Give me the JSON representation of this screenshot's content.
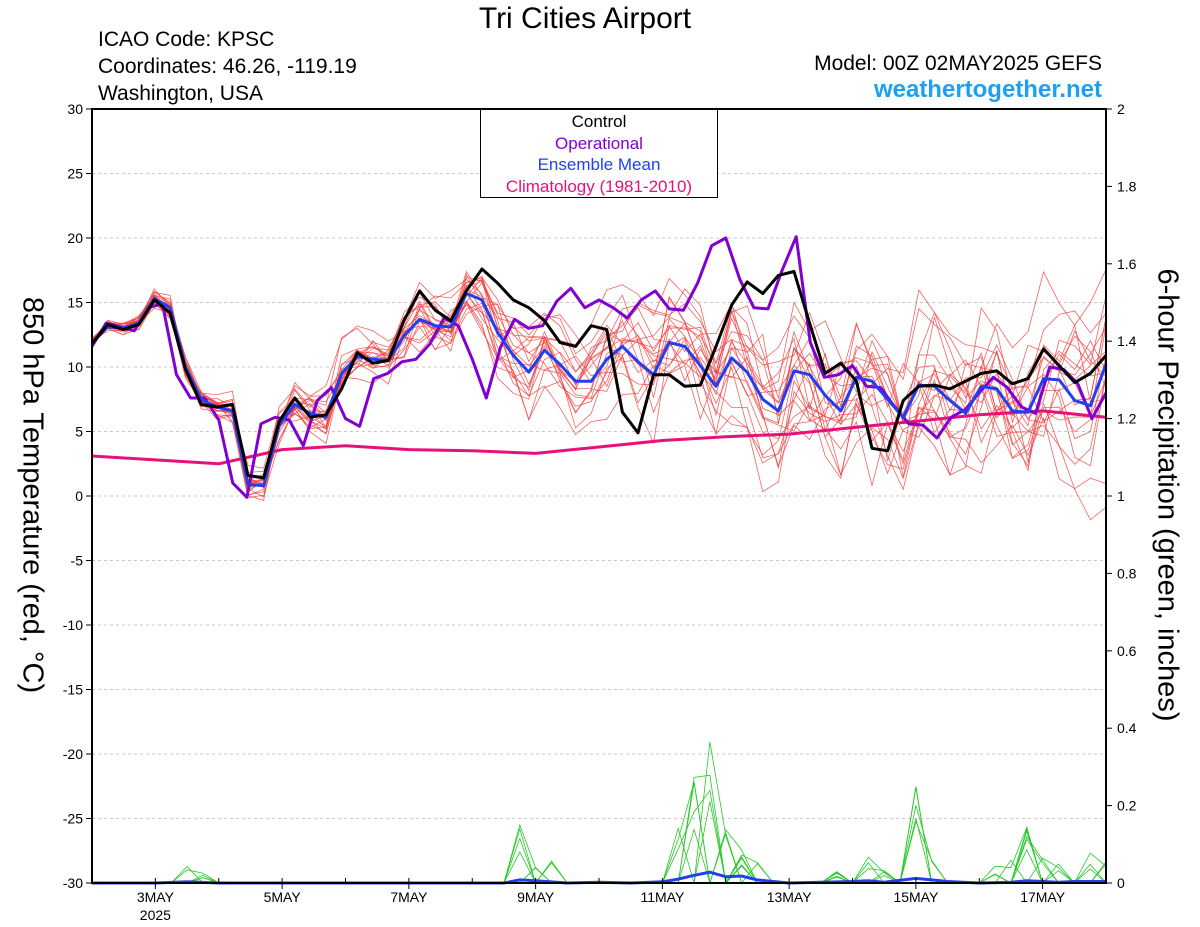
{
  "header": {
    "title": "Tri Cities Airport",
    "icao": "ICAO Code: KPSC",
    "coords": "Coordinates: 46.26, -119.19",
    "region": "Washington, USA",
    "model": "Model: 00Z 02MAY2025 GEFS",
    "site": "weathertogether.net"
  },
  "legend": {
    "items": [
      {
        "label": "Control",
        "color": "#000000"
      },
      {
        "label": "Operational",
        "color": "#8000d0"
      },
      {
        "label": "Ensemble Mean",
        "color": "#2040f0"
      },
      {
        "label": "Climatology (1981-2010)",
        "color": "#e8107a"
      }
    ]
  },
  "chart_data": {
    "type": "line",
    "x_unit": "days since 02MAY2025 00Z",
    "x_range": [
      0.0,
      16.0
    ],
    "x_ticks": [
      {
        "x": 1,
        "label": "3MAY",
        "sublabel": "2025"
      },
      {
        "x": 3,
        "label": "5MAY"
      },
      {
        "x": 5,
        "label": "7MAY"
      },
      {
        "x": 7,
        "label": "9MAY"
      },
      {
        "x": 9,
        "label": "11MAY"
      },
      {
        "x": 11,
        "label": "13MAY"
      },
      {
        "x": 13,
        "label": "15MAY"
      },
      {
        "x": 15,
        "label": "17MAY"
      }
    ],
    "y_left": {
      "label": "850 hPa Temperature (red, °C)",
      "range": [
        -30,
        30
      ],
      "ticks": [
        -30,
        -25,
        -20,
        -15,
        -10,
        -5,
        0,
        5,
        10,
        15,
        20,
        25,
        30
      ]
    },
    "y_right": {
      "label": "6-hour Precipitation (green, inches)",
      "range": [
        0,
        2
      ],
      "ticks": [
        0,
        0.2,
        0.4,
        0.6,
        0.8,
        1,
        1.2,
        1.4,
        1.6,
        1.8,
        2
      ]
    },
    "grid": "horizontal dashed",
    "legend_position": "top-center",
    "series": [
      {
        "name": "Control",
        "role": "control",
        "color": "#000000",
        "values": [
          11.8,
          13.3,
          12.9,
          13.3,
          15.2,
          14.2,
          9.8,
          7.1,
          6.9,
          7.1,
          1.6,
          1.4,
          5.8,
          7.6,
          6.1,
          6.3,
          8.3,
          11.1,
          10.3,
          10.5,
          13.6,
          15.9,
          14.4,
          13.6,
          15.9,
          17.6,
          16.5,
          15.2,
          14.6,
          13.6,
          11.9,
          11.6,
          13.2,
          12.9,
          6.5,
          4.9,
          9.4,
          9.4,
          8.5,
          8.6,
          11.6,
          14.8,
          16.6,
          15.7,
          17.1,
          17.4,
          13.4,
          9.5,
          10.3,
          8.9,
          3.7,
          3.5,
          7.4,
          8.5,
          8.6,
          8.3,
          8.9,
          9.5,
          9.7,
          8.7,
          9.1,
          11.4,
          10.1,
          8.8,
          9.5,
          10.9
        ]
      },
      {
        "name": "Operational",
        "role": "operational",
        "color": "#8000d0",
        "values": [
          11.6,
          13.4,
          13.1,
          12.8,
          14.6,
          14.9,
          9.4,
          7.6,
          7.6,
          5.9,
          1.0,
          -0.1,
          5.6,
          6.1,
          5.9,
          3.9,
          7.4,
          8.4,
          6.0,
          5.4,
          9.1,
          9.5,
          10.4,
          10.6,
          11.8,
          13.8,
          13.2,
          10.6,
          7.6,
          11.5,
          13.7,
          13.0,
          13.2,
          15.1,
          16.1,
          14.6,
          15.2,
          14.6,
          13.8,
          15.2,
          15.9,
          14.5,
          14.4,
          16.5,
          19.4,
          20.0,
          16.8,
          14.6,
          14.5,
          17.5,
          20.1,
          11.9,
          9.2,
          9.4,
          10.1,
          8.5,
          8.4,
          6.9,
          5.6,
          5.5,
          4.5,
          6.1,
          6.7,
          8.0,
          9.2,
          8.4,
          6.9,
          6.4,
          10.0,
          9.8,
          8.7,
          6.0,
          8.0
        ]
      },
      {
        "name": "Ensemble Mean",
        "role": "mean",
        "color": "#2040f0",
        "values": [
          11.9,
          13.1,
          13.0,
          13.4,
          15.3,
          14.6,
          10.0,
          7.5,
          6.9,
          6.6,
          0.9,
          0.8,
          5.5,
          7.1,
          6.4,
          6.1,
          9.5,
          10.8,
          10.6,
          10.5,
          12.4,
          13.7,
          13.2,
          13.1,
          15.7,
          15.2,
          12.7,
          10.9,
          9.6,
          11.3,
          10.2,
          8.9,
          8.9,
          10.6,
          11.6,
          10.4,
          9.4,
          11.9,
          11.6,
          10.1,
          8.5,
          10.7,
          9.6,
          7.5,
          6.6,
          9.7,
          9.4,
          7.8,
          6.6,
          9.2,
          8.9,
          7.5,
          6.1,
          8.6,
          8.5,
          7.4,
          6.4,
          8.5,
          8.3,
          6.6,
          6.5,
          9.1,
          9.0,
          7.4,
          7.0,
          10.2
        ]
      },
      {
        "name": "Climatology (1981-2010)",
        "role": "climatology",
        "color": "#e8107a",
        "points": [
          [
            0,
            3.1
          ],
          [
            1,
            2.8
          ],
          [
            2,
            2.5
          ],
          [
            3,
            3.6
          ],
          [
            4,
            3.9
          ],
          [
            5,
            3.6
          ],
          [
            6,
            3.5
          ],
          [
            7,
            3.3
          ],
          [
            8,
            3.8
          ],
          [
            9,
            4.3
          ],
          [
            10,
            4.6
          ],
          [
            11,
            4.8
          ],
          [
            12,
            5.3
          ],
          [
            13,
            5.8
          ],
          [
            14,
            6.3
          ],
          [
            15,
            6.6
          ],
          [
            16,
            6.1
          ]
        ]
      }
    ],
    "precip_series": [
      {
        "name": "Ensemble Mean Precip",
        "role": "precip_mean",
        "color": "#2040f0",
        "points": [
          [
            0,
            0
          ],
          [
            1,
            0
          ],
          [
            1.5,
            0.003
          ],
          [
            2,
            0
          ],
          [
            3,
            0
          ],
          [
            5,
            0
          ],
          [
            6.5,
            0
          ],
          [
            6.75,
            0.008
          ],
          [
            7,
            0.006
          ],
          [
            7.5,
            0
          ],
          [
            8,
            0.002
          ],
          [
            8.5,
            0
          ],
          [
            9,
            0.003
          ],
          [
            9.25,
            0.01
          ],
          [
            9.5,
            0.02
          ],
          [
            9.75,
            0.028
          ],
          [
            10,
            0.016
          ],
          [
            10.25,
            0.018
          ],
          [
            10.5,
            0.008
          ],
          [
            10.75,
            0.004
          ],
          [
            11,
            0
          ],
          [
            11.5,
            0.002
          ],
          [
            12,
            0.004
          ],
          [
            12.25,
            0.006
          ],
          [
            12.5,
            0.002
          ],
          [
            13,
            0.012
          ],
          [
            13.25,
            0.008
          ],
          [
            13.5,
            0.004
          ],
          [
            14,
            0
          ],
          [
            14.5,
            0.002
          ],
          [
            14.75,
            0.006
          ],
          [
            15,
            0.004
          ],
          [
            15.25,
            0.002
          ],
          [
            15.5,
            0.004
          ],
          [
            16,
            0.004
          ]
        ]
      }
    ]
  }
}
